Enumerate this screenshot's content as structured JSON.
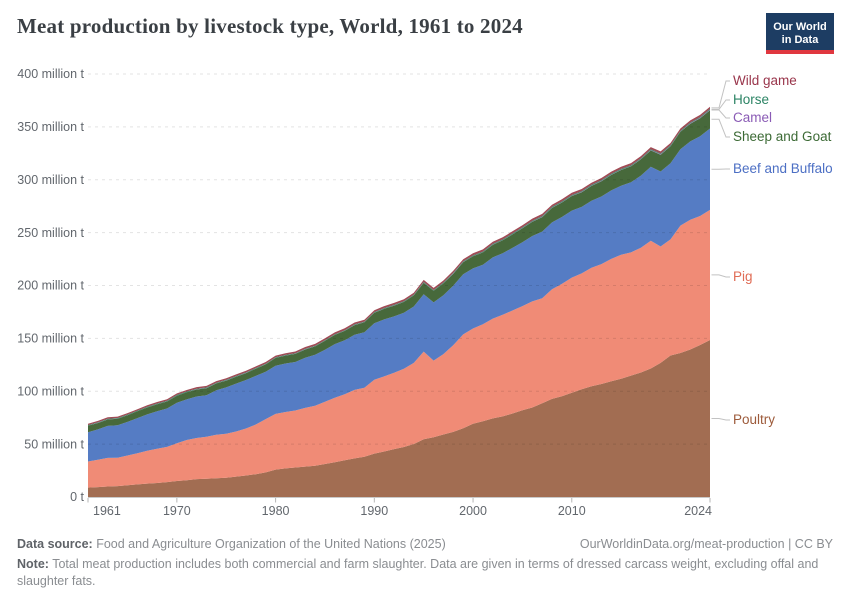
{
  "header": {
    "title": "Meat production by livestock type, World, 1961 to 2024",
    "logo": {
      "line1": "Our World",
      "line2": "in Data",
      "bg_color": "#1d3d63",
      "accent_color": "#e0373f"
    }
  },
  "chart_data": {
    "type": "area",
    "stacked": true,
    "title": "Meat production by livestock type, World, 1961 to 2024",
    "xlabel": "",
    "ylabel": "",
    "unit": "million t",
    "xlim": [
      1961,
      2024
    ],
    "ylim": [
      0,
      400
    ],
    "grid": "horizontal-dashed",
    "legend_position": "right-edge-labels",
    "x_ticks": [
      1961,
      1970,
      1980,
      1990,
      2000,
      2010,
      2024
    ],
    "y_ticks": [
      {
        "v": 0,
        "label": "0 t"
      },
      {
        "v": 50,
        "label": "50 million t"
      },
      {
        "v": 100,
        "label": "100 million t"
      },
      {
        "v": 150,
        "label": "150 million t"
      },
      {
        "v": 200,
        "label": "200 million t"
      },
      {
        "v": 250,
        "label": "250 million t"
      },
      {
        "v": 300,
        "label": "300 million t"
      },
      {
        "v": 350,
        "label": "350 million t"
      },
      {
        "v": 400,
        "label": "400 million t"
      }
    ],
    "x": [
      1961,
      1962,
      1963,
      1964,
      1965,
      1966,
      1967,
      1968,
      1969,
      1970,
      1971,
      1972,
      1973,
      1974,
      1975,
      1976,
      1977,
      1978,
      1979,
      1980,
      1981,
      1982,
      1983,
      1984,
      1985,
      1986,
      1987,
      1988,
      1989,
      1990,
      1991,
      1992,
      1993,
      1994,
      1995,
      1996,
      1997,
      1998,
      1999,
      2000,
      2001,
      2002,
      2003,
      2004,
      2005,
      2006,
      2007,
      2008,
      2009,
      2010,
      2011,
      2012,
      2013,
      2014,
      2015,
      2016,
      2017,
      2018,
      2019,
      2020,
      2021,
      2022,
      2023,
      2024
    ],
    "series": [
      {
        "name": "Poultry",
        "color": "#A26D52",
        "label_color": "#9D5B3B",
        "values": [
          8.9,
          9.4,
          9.9,
          10.3,
          11.1,
          11.9,
          12.7,
          13.2,
          14.1,
          15.1,
          15.9,
          16.9,
          17.3,
          17.8,
          18.2,
          19.3,
          20.3,
          21.6,
          23.3,
          25.9,
          27.0,
          27.9,
          28.7,
          29.5,
          31.2,
          32.9,
          34.8,
          36.5,
          38.0,
          41.0,
          43.0,
          45.3,
          47.3,
          50.1,
          54.7,
          56.5,
          59.1,
          61.6,
          65.1,
          69.2,
          71.6,
          74.3,
          76.2,
          79.0,
          82.1,
          84.6,
          88.7,
          92.8,
          95.3,
          98.5,
          101.9,
          104.8,
          106.9,
          109.4,
          111.9,
          114.8,
          117.7,
          121.5,
          126.8,
          133.8,
          136.2,
          139.5,
          143.7,
          148.5
        ]
      },
      {
        "name": "Pig",
        "color": "#F08B76",
        "label_color": "#E06C55",
        "values": [
          24.7,
          25.9,
          27.1,
          26.9,
          28.1,
          29.5,
          31.1,
          32.4,
          33.3,
          35.8,
          38.0,
          38.9,
          39.6,
          41.1,
          41.7,
          42.6,
          44.5,
          47.0,
          50.4,
          52.7,
          53.4,
          53.9,
          55.6,
          56.8,
          58.8,
          60.9,
          62.3,
          64.8,
          65.3,
          69.9,
          71.0,
          72.1,
          74.0,
          76.7,
          82.8,
          72.5,
          76.0,
          82.0,
          88.7,
          90.1,
          91.8,
          94.4,
          96.1,
          97.4,
          98.4,
          100.4,
          99.3,
          103.7,
          106.2,
          109.0,
          109.5,
          112.0,
          113.3,
          115.8,
          117.2,
          116.5,
          118.0,
          120.9,
          110.1,
          109.8,
          120.4,
          122.6,
          122.0,
          123.0
        ]
      },
      {
        "name": "Beef and Buffalo",
        "color": "#557CC4",
        "label_color": "#4C6FC4",
        "values": [
          27.7,
          28.6,
          30.2,
          30.6,
          31.8,
          33.2,
          34.3,
          35.5,
          36.3,
          38.3,
          38.4,
          39.2,
          39.4,
          42.0,
          43.7,
          45.3,
          45.8,
          45.9,
          44.7,
          45.6,
          45.8,
          45.9,
          47.4,
          48.2,
          49.3,
          50.8,
          51.1,
          52.1,
          52.4,
          53.4,
          53.9,
          53.4,
          52.9,
          53.3,
          54.2,
          55.0,
          55.7,
          56.3,
          56.9,
          56.9,
          56.3,
          57.9,
          58.2,
          59.2,
          60.4,
          61.8,
          63.0,
          63.2,
          63.3,
          63.3,
          62.9,
          63.3,
          64.0,
          64.7,
          65.2,
          66.3,
          68.2,
          69.8,
          70.9,
          72.0,
          72.3,
          74.2,
          75.5,
          77.0
        ]
      },
      {
        "name": "Sheep and Goat",
        "color": "#47693B",
        "label_color": "#3C6A35",
        "values": [
          6.0,
          6.1,
          6.1,
          6.2,
          6.3,
          6.4,
          6.5,
          6.6,
          6.6,
          6.6,
          6.7,
          6.7,
          6.6,
          6.5,
          6.5,
          6.5,
          6.6,
          6.8,
          7.0,
          7.3,
          7.5,
          7.6,
          7.8,
          7.9,
          8.4,
          8.7,
          8.9,
          9.2,
          9.5,
          9.9,
          10.1,
          10.2,
          10.3,
          10.5,
          10.9,
          11.0,
          11.2,
          11.3,
          11.4,
          11.4,
          11.6,
          11.9,
          12.2,
          12.7,
          13.2,
          13.5,
          13.7,
          13.7,
          13.7,
          13.8,
          13.9,
          14.1,
          14.4,
          14.7,
          14.9,
          15.1,
          15.4,
          15.6,
          15.9,
          16.0,
          16.4,
          16.7,
          17.0,
          17.3
        ]
      },
      {
        "name": "Camel",
        "color": "#9C6BBF",
        "label_color": "#8A5BB5",
        "values": [
          0.12,
          0.12,
          0.12,
          0.13,
          0.13,
          0.13,
          0.13,
          0.13,
          0.13,
          0.13,
          0.13,
          0.13,
          0.14,
          0.14,
          0.14,
          0.14,
          0.14,
          0.14,
          0.14,
          0.14,
          0.15,
          0.15,
          0.15,
          0.16,
          0.16,
          0.16,
          0.16,
          0.17,
          0.17,
          0.17,
          0.18,
          0.18,
          0.19,
          0.19,
          0.2,
          0.2,
          0.21,
          0.22,
          0.22,
          0.23,
          0.23,
          0.24,
          0.24,
          0.25,
          0.25,
          0.26,
          0.26,
          0.27,
          0.27,
          0.28,
          0.28,
          0.29,
          0.29,
          0.3,
          0.3,
          0.31,
          0.31,
          0.32,
          0.32,
          0.33,
          0.34,
          0.34,
          0.35,
          0.36
        ]
      },
      {
        "name": "Horse",
        "color": "#2F8465",
        "label_color": "#2C8465",
        "values": [
          0.59,
          0.6,
          0.61,
          0.61,
          0.59,
          0.6,
          0.61,
          0.62,
          0.64,
          0.65,
          0.64,
          0.62,
          0.6,
          0.58,
          0.56,
          0.54,
          0.52,
          0.51,
          0.5,
          0.5,
          0.5,
          0.5,
          0.51,
          0.51,
          0.5,
          0.51,
          0.51,
          0.52,
          0.52,
          0.53,
          0.54,
          0.55,
          0.56,
          0.58,
          0.57,
          0.59,
          0.61,
          0.63,
          0.64,
          0.65,
          0.66,
          0.67,
          0.68,
          0.69,
          0.7,
          0.71,
          0.72,
          0.73,
          0.73,
          0.74,
          0.75,
          0.75,
          0.76,
          0.76,
          0.77,
          0.77,
          0.78,
          0.78,
          0.79,
          0.79,
          0.78,
          0.78,
          0.79,
          0.8
        ]
      },
      {
        "name": "Wild game",
        "color": "#A04B55",
        "label_color": "#99354B",
        "values": [
          1.26,
          1.28,
          1.29,
          1.31,
          1.32,
          1.34,
          1.35,
          1.37,
          1.38,
          1.4,
          1.42,
          1.44,
          1.46,
          1.48,
          1.5,
          1.52,
          1.54,
          1.56,
          1.58,
          1.6,
          1.62,
          1.64,
          1.66,
          1.68,
          1.7,
          1.72,
          1.74,
          1.76,
          1.78,
          1.78,
          1.8,
          1.82,
          1.84,
          1.86,
          1.88,
          1.9,
          1.91,
          1.93,
          1.94,
          1.95,
          1.96,
          1.96,
          1.97,
          1.97,
          1.98,
          1.98,
          1.98,
          1.99,
          1.99,
          2.0,
          2.0,
          2.0,
          2.0,
          2.0,
          2.0,
          2.0,
          2.0,
          2.0,
          2.0,
          2.0,
          2.0,
          2.0,
          2.0,
          2.0
        ]
      }
    ]
  },
  "footer": {
    "datasource_label": "Data source:",
    "datasource_text": "Food and Agriculture Organization of the United Nations (2025)",
    "url": "OurWorldinData.org/meat-production",
    "divider": " | ",
    "license": "CC BY",
    "note_label": "Note:",
    "note_text": "Total meat production includes both commercial and farm slaughter. Data are given in terms of dressed carcass weight, excluding offal and slaughter fats."
  }
}
